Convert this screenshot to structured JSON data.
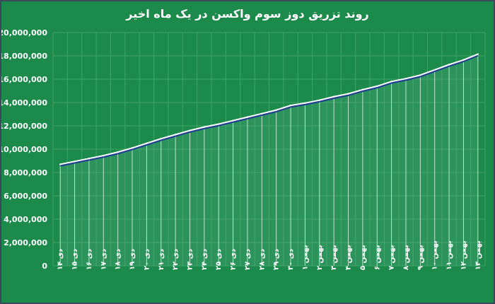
{
  "chart_data": {
    "type": "area",
    "title": "روند تزریق دوز سوم واکسن در یک ماه اخیر",
    "xlabel": "",
    "ylabel": "",
    "ylim": [
      0,
      20000000
    ],
    "yticks": [
      0,
      2000000,
      4000000,
      6000000,
      8000000,
      10000000,
      12000000,
      14000000,
      16000000,
      18000000,
      20000000
    ],
    "ytick_labels": [
      "0",
      "2,000,000",
      "4,000,000",
      "6,000,000",
      "8,000,000",
      "10,000,000",
      "12,000,000",
      "14,000,000",
      "16,000,000",
      "18,000,000",
      "20,000,000"
    ],
    "grid": true,
    "categories": [
      "دی ۱۴",
      "دی ۱۵",
      "دی ۱۶",
      "دی ۱۷",
      "دی ۱۸",
      "دی ۱۹",
      "دی ۲۰",
      "دی ۲۱",
      "دی ۲۲",
      "دی ۲۳",
      "دی ۲۴",
      "دی ۲۵",
      "دی ۲۶",
      "دی ۲۷",
      "دی ۲۸",
      "دی ۲۹",
      "دی ۳۰",
      "بهمن ۱",
      "بهمن ۲",
      "بهمن ۳",
      "بهمن ۴",
      "بهمن ۵",
      "بهمن ۶",
      "بهمن ۷",
      "بهمن ۸",
      "بهمن ۹",
      "بهمن ۱۰",
      "بهمن ۱۱",
      "بهمن ۱۲",
      "بهمن ۱۳"
    ],
    "series": [
      {
        "values": [
          8700000,
          8950000,
          9200000,
          9450000,
          9750000,
          10100000,
          10500000,
          10900000,
          11250000,
          11600000,
          11900000,
          12150000,
          12450000,
          12750000,
          13050000,
          13350000,
          13750000,
          13950000,
          14200000,
          14500000,
          14750000,
          15100000,
          15400000,
          15800000,
          16050000,
          16350000,
          16800000,
          17250000,
          17650000,
          18150000
        ]
      }
    ],
    "colors": {
      "background": "#1b8a4b",
      "line": "#ffffff",
      "line_shadow": "#1f3f8f",
      "fill": "#5fb08c",
      "grid": "#3fa366",
      "drop_lines": "#bfe3cc"
    }
  }
}
